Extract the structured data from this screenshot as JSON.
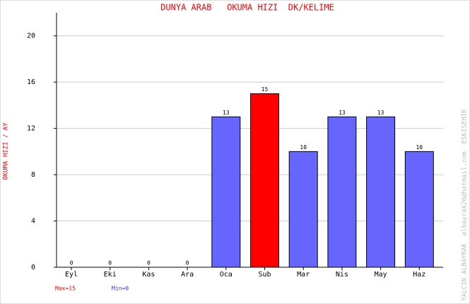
{
  "chart_data": {
    "type": "bar",
    "title": "DUNYA ARAB   OKUMA HIZI  DK/KELIME",
    "y_label": "OKUMA HIZI / AY",
    "side_note": "YALCIN ALBAYRAK  albayrak26@hotmail.com  ESKISEHIR",
    "max_label": "Max=15",
    "min_label": "Min=0",
    "categories": [
      "Eyl",
      "Eki",
      "Kas",
      "Ara",
      "Oca",
      "Sub",
      "Mar",
      "Nis",
      "May",
      "Haz"
    ],
    "values": [
      0,
      0,
      0,
      0,
      13,
      15,
      10,
      13,
      13,
      10
    ],
    "colors": [
      "#6666ff",
      "#6666ff",
      "#6666ff",
      "#6666ff",
      "#6666ff",
      "#ff0000",
      "#6666ff",
      "#6666ff",
      "#6666ff",
      "#6666ff"
    ],
    "ylim": [
      0,
      22
    ],
    "yticks": [
      0,
      4,
      8,
      12,
      16,
      20
    ],
    "grid": true
  }
}
